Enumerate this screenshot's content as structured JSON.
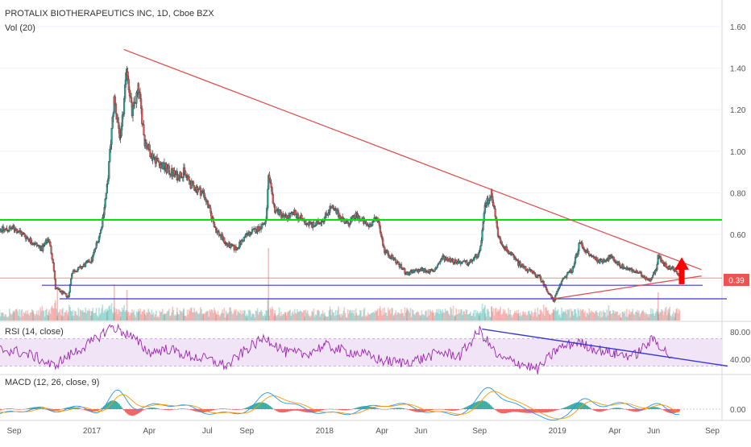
{
  "header": {
    "symbol": "PROTALIX BIOTHERAPEUTICS INC, 1D, Cboe BZX",
    "volume_label": "Vol (20)"
  },
  "colors": {
    "up": "#26a69a",
    "down": "#ef5350",
    "candle_body": "#4a4a4a",
    "resistance": "#00e600",
    "trendline": "#e04a4a",
    "support": "#3a3ad0",
    "price_badge": "#ef5350",
    "arrow": "#ff0000",
    "rsi_line": "#9c27b0",
    "rsi_band": "#f1e4f7",
    "macd_line": "#2196f3",
    "signal_line": "#ff9800",
    "hist_up": "#26a69a",
    "hist_down": "#ef5350"
  },
  "price_badge": "0.39",
  "chart_data": [
    {
      "type": "candlestick",
      "title": "PROTALIX BIOTHERAPEUTICS INC, 1D, Cboe BZX",
      "x_ticks": [
        "Sep",
        "2017",
        "Apr",
        "Jul",
        "Sep",
        "2018",
        "Apr",
        "Jun",
        "Sep",
        "2019",
        "Apr",
        "Jun",
        "Sep"
      ],
      "y_ticks": [
        "1.60",
        "1.40",
        "1.20",
        "1.00",
        "0.80",
        "0.60"
      ],
      "ylim": [
        0.25,
        1.65
      ],
      "close_path": [
        [
          "2016-08-01",
          0.64
        ],
        [
          "2016-08-15",
          0.62
        ],
        [
          "2016-09-01",
          0.63
        ],
        [
          "2016-09-15",
          0.6
        ],
        [
          "2016-10-01",
          0.56
        ],
        [
          "2016-10-15",
          0.53
        ],
        [
          "2016-10-25",
          0.58
        ],
        [
          "2016-11-01",
          0.47
        ],
        [
          "2016-11-05",
          0.34
        ],
        [
          "2016-11-15",
          0.32
        ],
        [
          "2016-11-25",
          0.3
        ],
        [
          "2016-12-01",
          0.42
        ],
        [
          "2016-12-15",
          0.44
        ],
        [
          "2017-01-01",
          0.48
        ],
        [
          "2017-01-15",
          0.62
        ],
        [
          "2017-01-25",
          0.83
        ],
        [
          "2017-02-05",
          1.25
        ],
        [
          "2017-02-15",
          1.05
        ],
        [
          "2017-02-25",
          1.4
        ],
        [
          "2017-03-05",
          1.18
        ],
        [
          "2017-03-15",
          1.3
        ],
        [
          "2017-03-25",
          1.05
        ],
        [
          "2017-04-05",
          0.98
        ],
        [
          "2017-04-25",
          0.92
        ],
        [
          "2017-05-15",
          0.88
        ],
        [
          "2017-05-25",
          0.9
        ],
        [
          "2017-06-05",
          0.84
        ],
        [
          "2017-06-25",
          0.8
        ],
        [
          "2017-07-15",
          0.62
        ],
        [
          "2017-08-01",
          0.55
        ],
        [
          "2017-08-15",
          0.53
        ],
        [
          "2017-09-01",
          0.6
        ],
        [
          "2017-09-15",
          0.62
        ],
        [
          "2017-10-01",
          0.66
        ],
        [
          "2017-10-05",
          0.87
        ],
        [
          "2017-10-15",
          0.72
        ],
        [
          "2017-11-01",
          0.68
        ],
        [
          "2017-11-15",
          0.7
        ],
        [
          "2017-12-01",
          0.66
        ],
        [
          "2017-12-15",
          0.64
        ],
        [
          "2018-01-01",
          0.68
        ],
        [
          "2018-01-10",
          0.73
        ],
        [
          "2018-01-25",
          0.69
        ],
        [
          "2018-02-05",
          0.65
        ],
        [
          "2018-02-20",
          0.69
        ],
        [
          "2018-03-10",
          0.64
        ],
        [
          "2018-03-25",
          0.68
        ],
        [
          "2018-04-05",
          0.52
        ],
        [
          "2018-04-20",
          0.48
        ],
        [
          "2018-05-10",
          0.41
        ],
        [
          "2018-06-01",
          0.43
        ],
        [
          "2018-06-20",
          0.42
        ],
        [
          "2018-07-05",
          0.49
        ],
        [
          "2018-07-25",
          0.47
        ],
        [
          "2018-08-15",
          0.46
        ],
        [
          "2018-09-01",
          0.51
        ],
        [
          "2018-09-10",
          0.74
        ],
        [
          "2018-09-20",
          0.8
        ],
        [
          "2018-10-01",
          0.58
        ],
        [
          "2018-10-15",
          0.52
        ],
        [
          "2018-11-01",
          0.46
        ],
        [
          "2018-11-20",
          0.42
        ],
        [
          "2018-12-05",
          0.39
        ],
        [
          "2018-12-20",
          0.31
        ],
        [
          "2018-12-26",
          0.28
        ],
        [
          "2019-01-10",
          0.39
        ],
        [
          "2019-01-25",
          0.43
        ],
        [
          "2019-02-05",
          0.56
        ],
        [
          "2019-02-20",
          0.5
        ],
        [
          "2019-03-10",
          0.47
        ],
        [
          "2019-03-25",
          0.49
        ],
        [
          "2019-04-10",
          0.45
        ],
        [
          "2019-04-25",
          0.43
        ],
        [
          "2019-05-10",
          0.41
        ],
        [
          "2019-05-25",
          0.38
        ],
        [
          "2019-06-05",
          0.43
        ],
        [
          "2019-06-08",
          0.5
        ],
        [
          "2019-06-15",
          0.46
        ],
        [
          "2019-06-25",
          0.44
        ],
        [
          "2019-07-05",
          0.43
        ],
        [
          "2019-07-12",
          0.39
        ]
      ],
      "horizontal_lines": [
        {
          "name": "resistance",
          "y": 0.67
        },
        {
          "name": "support-upper",
          "y": 0.355
        },
        {
          "name": "support-lower",
          "y": 0.29
        },
        {
          "name": "last-price",
          "y": 0.39
        }
      ],
      "trendlines": [
        {
          "name": "descending-resistance",
          "from": [
            "2017-02-20",
            1.49
          ],
          "to": [
            "2019-08-15",
            0.43
          ]
        },
        {
          "name": "ascending-support",
          "from": [
            "2018-12-26",
            0.29
          ],
          "to": [
            "2019-08-15",
            0.4
          ]
        }
      ],
      "arrow": {
        "x": "2019-07-15",
        "direction": "up"
      }
    },
    {
      "type": "line",
      "title": "RSI (14, close)",
      "y_ticks": [
        "80.00",
        "40.00"
      ],
      "ylim": [
        15,
        95
      ],
      "band": [
        30,
        70
      ],
      "values_monthly": [
        [
          "2016-08-01",
          55
        ],
        [
          "2016-09-01",
          52
        ],
        [
          "2016-10-01",
          45
        ],
        [
          "2016-11-01",
          30
        ],
        [
          "2016-12-01",
          48
        ],
        [
          "2017-01-01",
          65
        ],
        [
          "2017-02-01",
          88
        ],
        [
          "2017-03-01",
          75
        ],
        [
          "2017-04-01",
          50
        ],
        [
          "2017-05-01",
          55
        ],
        [
          "2017-06-01",
          45
        ],
        [
          "2017-07-01",
          40
        ],
        [
          "2017-08-01",
          30
        ],
        [
          "2017-09-01",
          55
        ],
        [
          "2017-10-01",
          72
        ],
        [
          "2017-11-01",
          50
        ],
        [
          "2017-12-01",
          47
        ],
        [
          "2018-01-01",
          60
        ],
        [
          "2018-02-01",
          52
        ],
        [
          "2018-03-01",
          48
        ],
        [
          "2018-04-01",
          38
        ],
        [
          "2018-05-01",
          35
        ],
        [
          "2018-06-01",
          40
        ],
        [
          "2018-07-01",
          50
        ],
        [
          "2018-08-01",
          45
        ],
        [
          "2018-09-01",
          82
        ],
        [
          "2018-10-01",
          42
        ],
        [
          "2018-11-01",
          35
        ],
        [
          "2018-12-01",
          25
        ],
        [
          "2019-01-01",
          55
        ],
        [
          "2019-02-01",
          65
        ],
        [
          "2019-03-01",
          55
        ],
        [
          "2019-04-01",
          48
        ],
        [
          "2019-05-01",
          45
        ],
        [
          "2019-06-01",
          70
        ],
        [
          "2019-07-01",
          40
        ]
      ],
      "trendline": {
        "from": [
          "2018-09-05",
          84
        ],
        "to": [
          "2019-09-25",
          30
        ]
      }
    },
    {
      "type": "bar",
      "title": "MACD (12, 26, close, 9)",
      "y_ticks": [
        "0.00"
      ],
      "ylim": [
        -0.06,
        0.12
      ],
      "zero": 0
    }
  ]
}
